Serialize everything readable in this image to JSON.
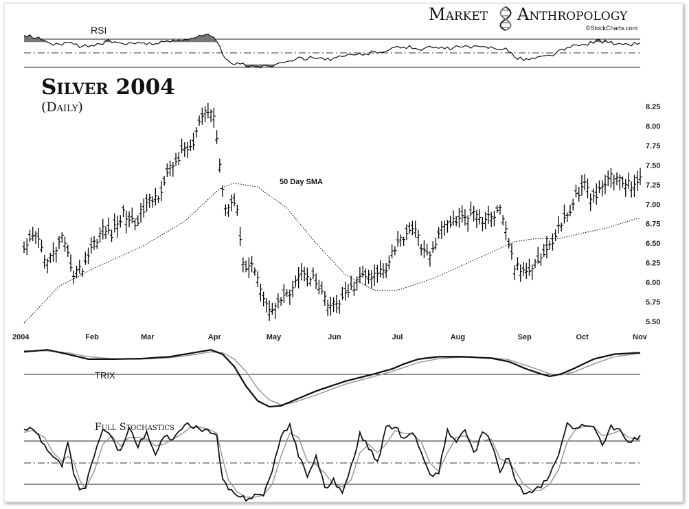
{
  "brand": {
    "word1": "Market",
    "word2": "Anthropology",
    "credit": "©StockCharts.com",
    "logo_icon": "dna-helix-icon"
  },
  "title": {
    "main": "Silver 2004",
    "sub": "(Daily)"
  },
  "chart_data": [
    {
      "panel": "price",
      "type": "ohlc",
      "title": "Silver 2004 (Daily)",
      "ylim": [
        5.5,
        8.25
      ],
      "yticks": [
        "8.25",
        "8.00",
        "7.75",
        "7.50",
        "7.25",
        "7.00",
        "6.75",
        "6.50",
        "6.25",
        "6.00",
        "5.75",
        "5.50"
      ],
      "ytick_values": [
        8.25,
        8.0,
        7.75,
        7.5,
        7.25,
        7.0,
        6.75,
        6.5,
        6.25,
        6.0,
        5.75,
        5.5
      ],
      "months": [
        "2004",
        "Feb",
        "Mar",
        "Apr",
        "May",
        "Jun",
        "Jul",
        "Aug",
        "Sep",
        "Oct",
        "Nov"
      ],
      "month_start_days": [
        0,
        21,
        40,
        63,
        83,
        104,
        126,
        146,
        169,
        189,
        210
      ],
      "day_count": 212,
      "close_keypoints": [
        [
          0,
          6.38
        ],
        [
          4,
          6.62
        ],
        [
          8,
          6.25
        ],
        [
          13,
          6.55
        ],
        [
          17,
          6.12
        ],
        [
          20,
          6.18
        ],
        [
          23,
          6.45
        ],
        [
          27,
          6.68
        ],
        [
          30,
          6.62
        ],
        [
          34,
          6.88
        ],
        [
          38,
          6.75
        ],
        [
          42,
          7.0
        ],
        [
          46,
          7.12
        ],
        [
          50,
          7.45
        ],
        [
          55,
          7.7
        ],
        [
          58,
          7.75
        ],
        [
          60,
          8.05
        ],
        [
          63,
          8.18
        ],
        [
          65,
          8.15
        ],
        [
          67,
          7.5
        ],
        [
          69,
          6.95
        ],
        [
          71,
          7.08
        ],
        [
          73,
          6.95
        ],
        [
          75,
          6.2
        ],
        [
          78,
          6.25
        ],
        [
          81,
          5.95
        ],
        [
          84,
          5.62
        ],
        [
          87,
          5.75
        ],
        [
          90,
          5.82
        ],
        [
          93,
          6.05
        ],
        [
          96,
          6.15
        ],
        [
          99,
          6.05
        ],
        [
          102,
          5.85
        ],
        [
          104,
          5.7
        ],
        [
          107,
          5.72
        ],
        [
          110,
          5.82
        ],
        [
          113,
          5.95
        ],
        [
          116,
          6.1
        ],
        [
          119,
          6.05
        ],
        [
          122,
          6.15
        ],
        [
          124,
          6.2
        ],
        [
          126,
          6.4
        ],
        [
          130,
          6.6
        ],
        [
          133,
          6.72
        ],
        [
          136,
          6.48
        ],
        [
          139,
          6.3
        ],
        [
          142,
          6.65
        ],
        [
          145,
          6.75
        ],
        [
          148,
          6.8
        ],
        [
          151,
          6.82
        ],
        [
          154,
          6.95
        ],
        [
          157,
          6.78
        ],
        [
          160,
          6.85
        ],
        [
          163,
          6.9
        ],
        [
          165,
          6.65
        ],
        [
          168,
          6.2
        ],
        [
          171,
          6.15
        ],
        [
          174,
          6.22
        ],
        [
          177,
          6.32
        ],
        [
          180,
          6.45
        ],
        [
          183,
          6.7
        ],
        [
          186,
          6.85
        ],
        [
          189,
          7.1
        ],
        [
          192,
          7.25
        ],
        [
          195,
          7.05
        ],
        [
          198,
          7.2
        ],
        [
          201,
          7.38
        ],
        [
          204,
          7.3
        ],
        [
          207,
          7.25
        ],
        [
          210,
          7.3
        ]
      ],
      "sma": {
        "label": "50 Day SMA",
        "keypoints": [
          [
            0,
            5.48
          ],
          [
            12,
            5.95
          ],
          [
            25,
            6.2
          ],
          [
            40,
            6.45
          ],
          [
            55,
            6.78
          ],
          [
            67,
            7.2
          ],
          [
            72,
            7.27
          ],
          [
            80,
            7.22
          ],
          [
            90,
            6.95
          ],
          [
            100,
            6.5
          ],
          [
            110,
            6.1
          ],
          [
            120,
            5.9
          ],
          [
            128,
            5.9
          ],
          [
            140,
            6.05
          ],
          [
            155,
            6.3
          ],
          [
            168,
            6.52
          ],
          [
            175,
            6.56
          ],
          [
            183,
            6.56
          ],
          [
            190,
            6.62
          ],
          [
            200,
            6.7
          ],
          [
            210,
            6.82
          ]
        ]
      }
    },
    {
      "panel": "rsi",
      "type": "line",
      "label": "RSI",
      "ylim": [
        0,
        100
      ],
      "reference_lines": [
        70,
        50,
        30
      ],
      "keypoints": [
        [
          0,
          82
        ],
        [
          5,
          80
        ],
        [
          7,
          72
        ],
        [
          10,
          64
        ],
        [
          15,
          69
        ],
        [
          20,
          62
        ],
        [
          25,
          66
        ],
        [
          30,
          72
        ],
        [
          35,
          65
        ],
        [
          40,
          70
        ],
        [
          45,
          67
        ],
        [
          50,
          72
        ],
        [
          55,
          76
        ],
        [
          58,
          79
        ],
        [
          63,
          82
        ],
        [
          66,
          74
        ],
        [
          68,
          45
        ],
        [
          70,
          34
        ],
        [
          74,
          30
        ],
        [
          78,
          28
        ],
        [
          82,
          26
        ],
        [
          86,
          30
        ],
        [
          90,
          38
        ],
        [
          95,
          40
        ],
        [
          100,
          44
        ],
        [
          105,
          38
        ],
        [
          110,
          45
        ],
        [
          115,
          48
        ],
        [
          120,
          52
        ],
        [
          125,
          57
        ],
        [
          130,
          62
        ],
        [
          135,
          58
        ],
        [
          140,
          60
        ],
        [
          145,
          58
        ],
        [
          150,
          62
        ],
        [
          155,
          60
        ],
        [
          160,
          61
        ],
        [
          165,
          58
        ],
        [
          168,
          42
        ],
        [
          172,
          39
        ],
        [
          176,
          42
        ],
        [
          180,
          46
        ],
        [
          184,
          55
        ],
        [
          188,
          62
        ],
        [
          192,
          66
        ],
        [
          196,
          72
        ],
        [
          200,
          70
        ],
        [
          205,
          64
        ],
        [
          210,
          68
        ]
      ]
    },
    {
      "panel": "trix",
      "type": "line",
      "label": "TRIX",
      "ylim": [
        -0.9,
        0.5
      ],
      "reference_lines": [
        0
      ],
      "trix_keypoints": [
        [
          0,
          0.4
        ],
        [
          8,
          0.44
        ],
        [
          15,
          0.35
        ],
        [
          22,
          0.25
        ],
        [
          30,
          0.25
        ],
        [
          40,
          0.26
        ],
        [
          50,
          0.3
        ],
        [
          58,
          0.38
        ],
        [
          64,
          0.44
        ],
        [
          68,
          0.35
        ],
        [
          72,
          0.1
        ],
        [
          76,
          -0.3
        ],
        [
          80,
          -0.6
        ],
        [
          84,
          -0.72
        ],
        [
          88,
          -0.7
        ],
        [
          92,
          -0.6
        ],
        [
          100,
          -0.4
        ],
        [
          110,
          -0.2
        ],
        [
          120,
          -0.05
        ],
        [
          126,
          0.05
        ],
        [
          130,
          0.15
        ],
        [
          135,
          0.25
        ],
        [
          142,
          0.3
        ],
        [
          150,
          0.3
        ],
        [
          160,
          0.27
        ],
        [
          166,
          0.2
        ],
        [
          172,
          0.05
        ],
        [
          177,
          -0.05
        ],
        [
          180,
          -0.1
        ],
        [
          184,
          -0.05
        ],
        [
          188,
          0.05
        ],
        [
          195,
          0.25
        ],
        [
          202,
          0.35
        ],
        [
          210,
          0.38
        ]
      ],
      "signal_keypoints": [
        [
          0,
          0.42
        ],
        [
          8,
          0.42
        ],
        [
          15,
          0.38
        ],
        [
          22,
          0.3
        ],
        [
          30,
          0.26
        ],
        [
          40,
          0.25
        ],
        [
          50,
          0.28
        ],
        [
          58,
          0.34
        ],
        [
          64,
          0.4
        ],
        [
          68,
          0.38
        ],
        [
          72,
          0.25
        ],
        [
          76,
          0.0
        ],
        [
          80,
          -0.35
        ],
        [
          84,
          -0.58
        ],
        [
          88,
          -0.68
        ],
        [
          92,
          -0.64
        ],
        [
          100,
          -0.48
        ],
        [
          110,
          -0.26
        ],
        [
          120,
          -0.1
        ],
        [
          126,
          0.0
        ],
        [
          130,
          0.08
        ],
        [
          135,
          0.18
        ],
        [
          142,
          0.26
        ],
        [
          150,
          0.29
        ],
        [
          160,
          0.28
        ],
        [
          166,
          0.24
        ],
        [
          172,
          0.12
        ],
        [
          177,
          0.02
        ],
        [
          180,
          -0.05
        ],
        [
          184,
          -0.07
        ],
        [
          188,
          -0.02
        ],
        [
          195,
          0.15
        ],
        [
          202,
          0.3
        ],
        [
          210,
          0.36
        ]
      ]
    },
    {
      "panel": "stochastics",
      "type": "line",
      "label": "Full Stochastics",
      "ylim": [
        0,
        100
      ],
      "reference_lines": [
        80,
        50,
        20
      ],
      "k_keypoints": [
        [
          0,
          88
        ],
        [
          3,
          92
        ],
        [
          7,
          70
        ],
        [
          10,
          55
        ],
        [
          13,
          48
        ],
        [
          15,
          72
        ],
        [
          17,
          40
        ],
        [
          19,
          18
        ],
        [
          21,
          22
        ],
        [
          24,
          60
        ],
        [
          27,
          88
        ],
        [
          30,
          80
        ],
        [
          33,
          62
        ],
        [
          36,
          92
        ],
        [
          39,
          70
        ],
        [
          42,
          85
        ],
        [
          45,
          58
        ],
        [
          48,
          82
        ],
        [
          51,
          75
        ],
        [
          54,
          92
        ],
        [
          57,
          95
        ],
        [
          60,
          90
        ],
        [
          63,
          88
        ],
        [
          66,
          80
        ],
        [
          68,
          30
        ],
        [
          70,
          20
        ],
        [
          73,
          10
        ],
        [
          76,
          8
        ],
        [
          79,
          12
        ],
        [
          82,
          14
        ],
        [
          85,
          40
        ],
        [
          88,
          80
        ],
        [
          91,
          95
        ],
        [
          94,
          60
        ],
        [
          97,
          35
        ],
        [
          100,
          58
        ],
        [
          103,
          20
        ],
        [
          106,
          30
        ],
        [
          109,
          15
        ],
        [
          112,
          45
        ],
        [
          115,
          85
        ],
        [
          118,
          68
        ],
        [
          121,
          50
        ],
        [
          124,
          90
        ],
        [
          127,
          94
        ],
        [
          130,
          78
        ],
        [
          133,
          88
        ],
        [
          136,
          62
        ],
        [
          139,
          35
        ],
        [
          142,
          40
        ],
        [
          145,
          88
        ],
        [
          148,
          75
        ],
        [
          151,
          90
        ],
        [
          154,
          60
        ],
        [
          157,
          85
        ],
        [
          160,
          75
        ],
        [
          163,
          40
        ],
        [
          166,
          58
        ],
        [
          168,
          30
        ],
        [
          171,
          15
        ],
        [
          174,
          18
        ],
        [
          177,
          22
        ],
        [
          180,
          35
        ],
        [
          183,
          60
        ],
        [
          186,
          95
        ],
        [
          189,
          90
        ],
        [
          192,
          96
        ],
        [
          195,
          92
        ],
        [
          198,
          70
        ],
        [
          201,
          94
        ],
        [
          204,
          88
        ],
        [
          207,
          72
        ],
        [
          210,
          80
        ]
      ],
      "d_keypoints": [
        [
          0,
          86
        ],
        [
          3,
          88
        ],
        [
          7,
          80
        ],
        [
          10,
          62
        ],
        [
          13,
          52
        ],
        [
          15,
          58
        ],
        [
          17,
          52
        ],
        [
          19,
          30
        ],
        [
          21,
          20
        ],
        [
          24,
          40
        ],
        [
          27,
          72
        ],
        [
          30,
          82
        ],
        [
          33,
          70
        ],
        [
          36,
          80
        ],
        [
          39,
          80
        ],
        [
          42,
          78
        ],
        [
          45,
          70
        ],
        [
          48,
          72
        ],
        [
          51,
          78
        ],
        [
          54,
          84
        ],
        [
          57,
          92
        ],
        [
          60,
          92
        ],
        [
          63,
          90
        ],
        [
          66,
          85
        ],
        [
          68,
          55
        ],
        [
          70,
          30
        ],
        [
          73,
          16
        ],
        [
          76,
          10
        ],
        [
          79,
          10
        ],
        [
          82,
          12
        ],
        [
          85,
          25
        ],
        [
          88,
          58
        ],
        [
          91,
          85
        ],
        [
          94,
          80
        ],
        [
          97,
          52
        ],
        [
          100,
          48
        ],
        [
          103,
          38
        ],
        [
          106,
          25
        ],
        [
          109,
          22
        ],
        [
          112,
          30
        ],
        [
          115,
          62
        ],
        [
          118,
          72
        ],
        [
          121,
          62
        ],
        [
          124,
          72
        ],
        [
          127,
          88
        ],
        [
          130,
          85
        ],
        [
          133,
          84
        ],
        [
          136,
          75
        ],
        [
          139,
          50
        ],
        [
          142,
          40
        ],
        [
          145,
          62
        ],
        [
          148,
          80
        ],
        [
          151,
          82
        ],
        [
          154,
          74
        ],
        [
          157,
          76
        ],
        [
          160,
          78
        ],
        [
          163,
          55
        ],
        [
          166,
          50
        ],
        [
          168,
          42
        ],
        [
          171,
          25
        ],
        [
          174,
          18
        ],
        [
          177,
          18
        ],
        [
          180,
          25
        ],
        [
          183,
          42
        ],
        [
          186,
          75
        ],
        [
          189,
          90
        ],
        [
          192,
          93
        ],
        [
          195,
          93
        ],
        [
          198,
          82
        ],
        [
          201,
          84
        ],
        [
          204,
          88
        ],
        [
          207,
          80
        ],
        [
          210,
          78
        ]
      ]
    }
  ]
}
